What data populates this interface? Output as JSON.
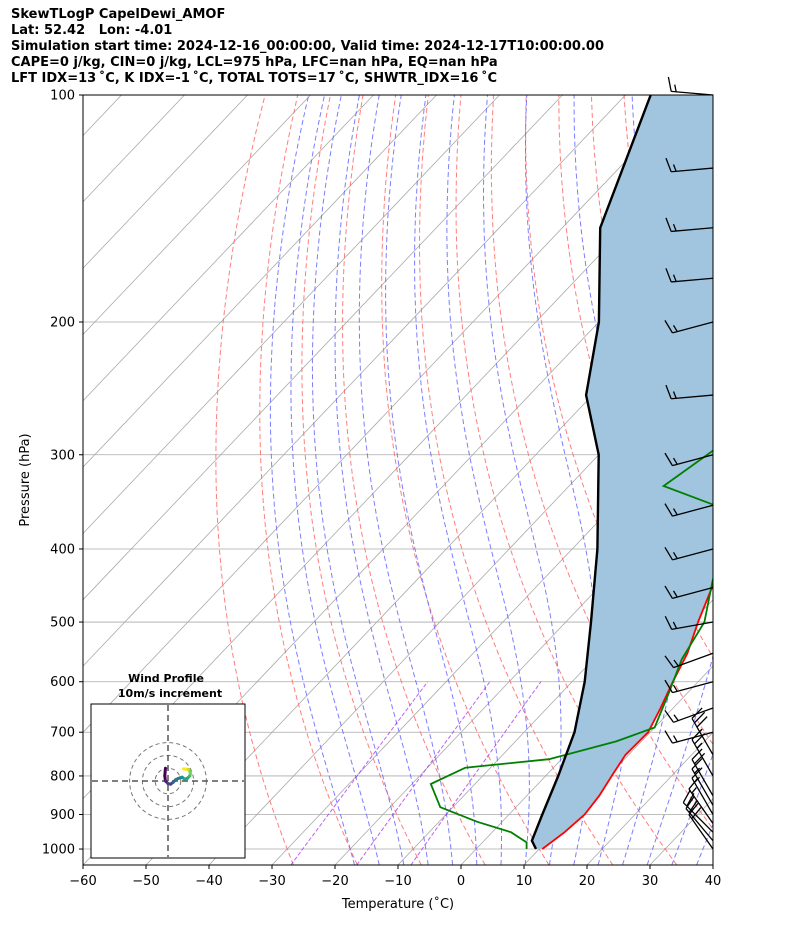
{
  "header": {
    "line1": "SkewTLogP CapelDewi_AMOF",
    "line2": "Lat: 52.42   Lon: -4.01",
    "line3": "Simulation start time: 2024-12-16_00:00:00, Valid time: 2024-12-17T10:00:00.00",
    "line4": "CAPE=0 j/kg, CIN=0 j/kg, LCL=975 hPa, LFC=nan hPa, EQ=nan hPa",
    "line5": "LFT IDX=13 ˚C, K IDX=-1 ˚C, TOTAL TOTS=17 ˚C, SHWTR_IDX=16 ˚C"
  },
  "chart_data": [
    {
      "type": "line",
      "subtype": "skew-T log-P",
      "xlabel": "Temperature (˚C)",
      "ylabel": "Pressure (hPa)",
      "xlim": [
        -60,
        40
      ],
      "ylim": [
        1050,
        100
      ],
      "yscale": "log",
      "x_ticks": [
        -60,
        -50,
        -40,
        -30,
        -20,
        -10,
        0,
        10,
        20,
        30,
        40
      ],
      "y_ticks": [
        1000,
        900,
        800,
        700,
        600,
        500,
        400,
        300,
        200,
        100
      ],
      "grid": true,
      "colors": {
        "temperature": "#ff0000",
        "dewpoint": "#008000",
        "parcel": "#000000",
        "shade": "#a1c5df",
        "dry_adiabats": "#ff6666",
        "moist_adiabats": "#6666ff",
        "mixing_ratio": "#a020f0",
        "isotherms": "#aaaaaa",
        "barbs": "#000000"
      },
      "series": [
        {
          "key": "temperature",
          "points": [
            [
              10.5,
              1000
            ],
            [
              11.5,
              950
            ],
            [
              12,
              900
            ],
            [
              11.5,
              850
            ],
            [
              10.5,
              800
            ],
            [
              9.5,
              750
            ],
            [
              9.7,
              700
            ],
            [
              8,
              650
            ],
            [
              6,
              600
            ],
            [
              4,
              550
            ],
            [
              1,
              500
            ],
            [
              -2,
              450
            ],
            [
              -5,
              400
            ],
            [
              -8,
              350
            ],
            [
              -12,
              300
            ],
            [
              -16,
              270
            ],
            [
              -21,
              240
            ],
            [
              -29,
              210
            ],
            [
              -32,
              200
            ],
            [
              -34,
              190
            ],
            [
              -33,
              180
            ],
            [
              -29,
              165
            ],
            [
              -25,
              150
            ],
            [
              -23,
              140
            ],
            [
              -20,
              130
            ],
            [
              -19,
              115
            ],
            [
              -21,
              100
            ]
          ]
        },
        {
          "key": "dewpoint",
          "points": [
            [
              8,
              1000
            ],
            [
              7,
              980
            ],
            [
              3,
              950
            ],
            [
              -4,
              920
            ],
            [
              -12,
              880
            ],
            [
              -17,
              820
            ],
            [
              -14,
              780
            ],
            [
              -2,
              760
            ],
            [
              6,
              720
            ],
            [
              10,
              690
            ],
            [
              7,
              620
            ],
            [
              4,
              560
            ],
            [
              2,
              500
            ],
            [
              -3,
              440
            ],
            [
              -8,
              380
            ],
            [
              -14,
              350
            ],
            [
              -25,
              330
            ],
            [
              -22,
              290
            ],
            [
              -24,
              260
            ],
            [
              -29,
              220
            ],
            [
              -34,
              190
            ],
            [
              -36,
              180
            ],
            [
              -29,
              165
            ],
            [
              -30,
              150
            ],
            [
              -33,
              140
            ],
            [
              -34,
              130
            ],
            [
              -35,
              120
            ],
            [
              -32,
              110
            ],
            [
              -31,
              100
            ]
          ]
        },
        {
          "key": "parcel",
          "points": [
            [
              9.5,
              1000
            ],
            [
              7.6,
              975
            ],
            [
              5.3,
              900
            ],
            [
              2,
              800
            ],
            [
              -2,
              700
            ],
            [
              -8,
              600
            ],
            [
              -16,
              500
            ],
            [
              -26,
              400
            ],
            [
              -40,
              300
            ],
            [
              -51,
              250
            ],
            [
              -60,
              200
            ],
            [
              -74,
              150
            ],
            [
              -86,
              100
            ]
          ]
        }
      ],
      "wind_barbs": {
        "pressures": [
          1000,
          975,
          950,
          925,
          900,
          875,
          850,
          800,
          750,
          700,
          650,
          600,
          550,
          500,
          450,
          400,
          350,
          300,
          250,
          200,
          175,
          150,
          125,
          100
        ],
        "speeds_kt": [
          20,
          20,
          20,
          15,
          15,
          15,
          20,
          25,
          30,
          15,
          15,
          15,
          15,
          15,
          15,
          15,
          15,
          15,
          15,
          15,
          15,
          15,
          15,
          15
        ],
        "directions_deg": [
          325,
          320,
          315,
          325,
          330,
          330,
          330,
          330,
          330,
          255,
          250,
          255,
          250,
          260,
          255,
          255,
          255,
          255,
          265,
          255,
          265,
          265,
          265,
          275
        ]
      },
      "inset": {
        "title": "Wind Profile",
        "subtitle": "10m/s increment",
        "rings_ms": [
          10,
          20,
          30
        ],
        "hodograph_uv_ms": [
          [
            -2,
            -10
          ],
          [
            -2.5,
            -4
          ],
          [
            -2,
            0
          ],
          [
            0,
            2
          ],
          [
            2,
            2.5
          ],
          [
            4,
            1
          ],
          [
            6,
            -1
          ],
          [
            8,
            -2
          ],
          [
            11,
            -3
          ],
          [
            13,
            -1.5
          ],
          [
            15,
            -2
          ],
          [
            17,
            -4
          ],
          [
            17.5,
            -6
          ],
          [
            17,
            -8
          ],
          [
            16,
            -9
          ],
          [
            14,
            -9.2
          ],
          [
            12,
            -9.5
          ]
        ]
      }
    }
  ]
}
